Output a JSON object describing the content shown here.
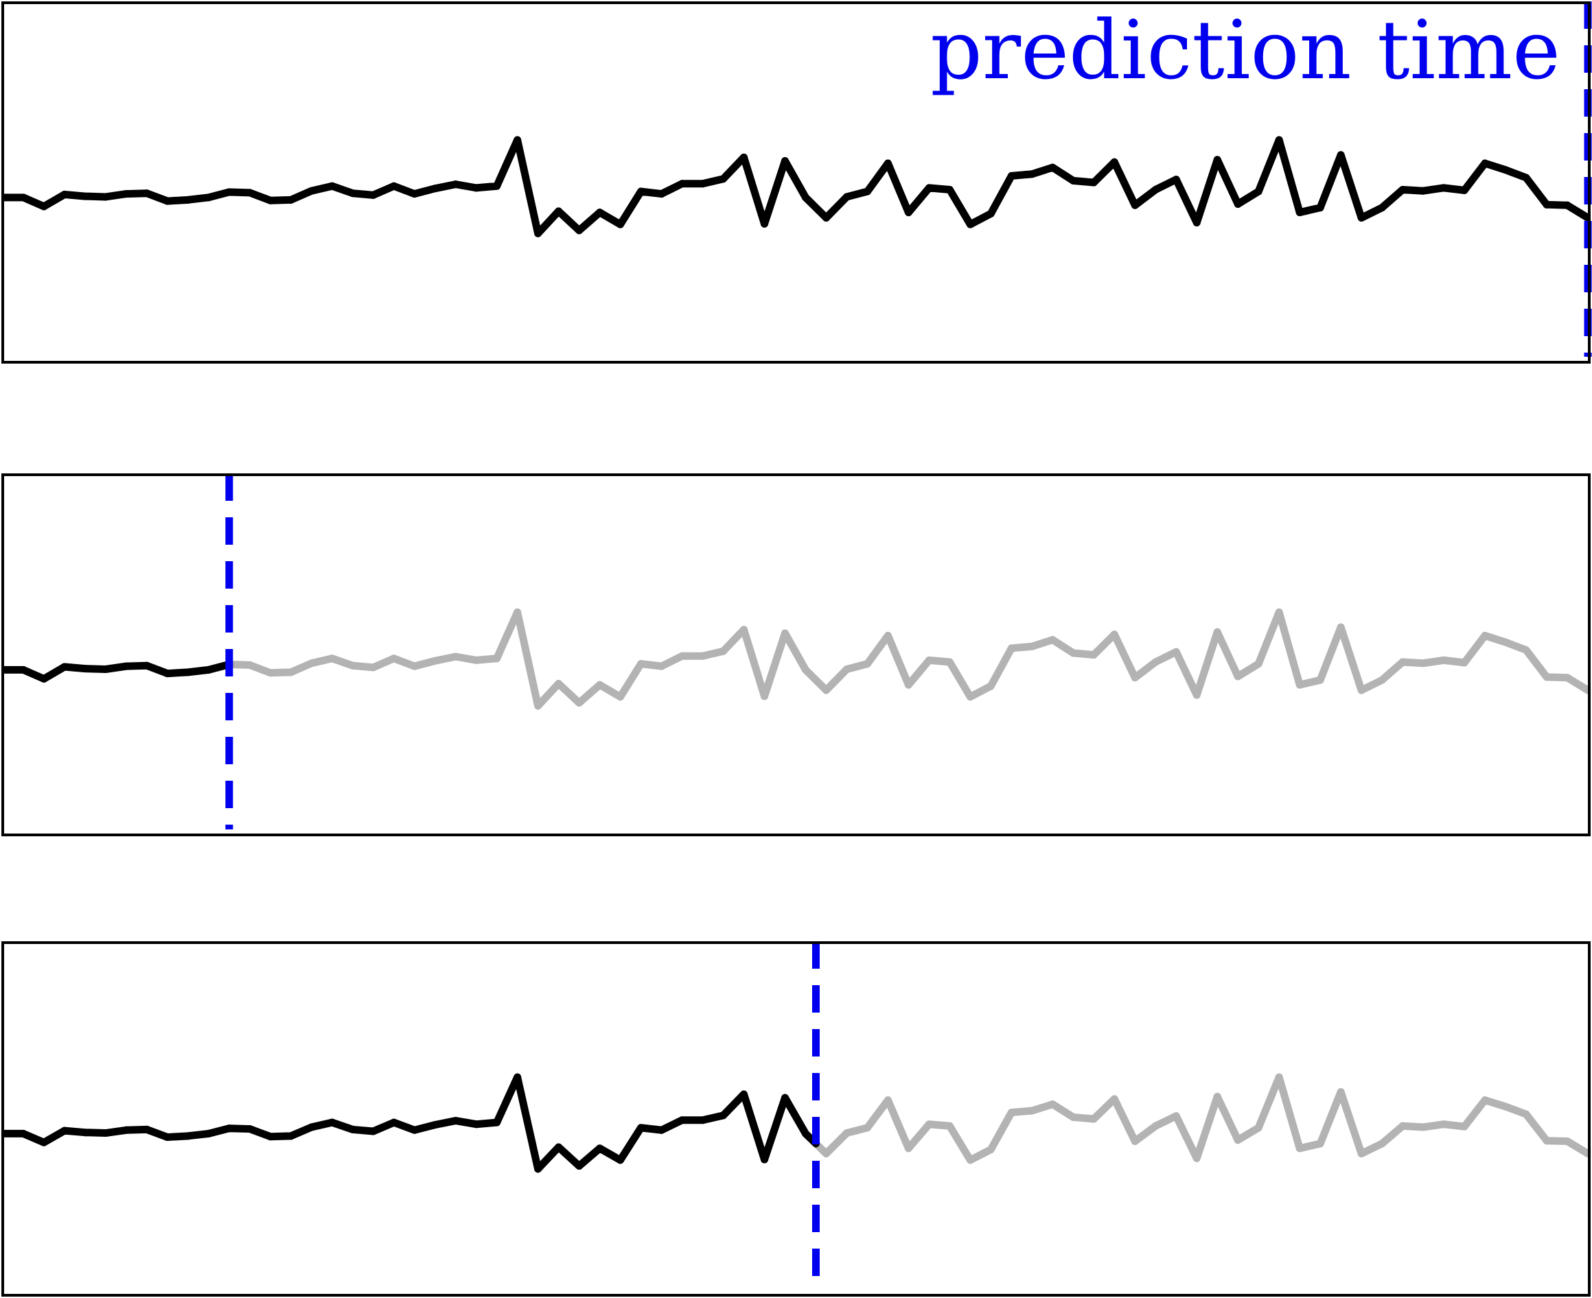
{
  "chart_data": {
    "type": "line",
    "y": [
      1.25,
      1.25,
      1.1,
      1.3,
      1.27,
      1.26,
      1.31,
      1.32,
      1.19,
      1.21,
      1.25,
      1.34,
      1.33,
      1.2,
      1.21,
      1.36,
      1.44,
      1.32,
      1.29,
      1.44,
      1.31,
      1.4,
      1.47,
      1.41,
      1.44,
      2.21,
      0.65,
      1.02,
      0.7,
      1.0,
      0.8,
      1.35,
      1.31,
      1.48,
      1.48,
      1.56,
      1.92,
      0.81,
      1.86,
      1.25,
      0.91,
      1.26,
      1.35,
      1.82,
      1.0,
      1.41,
      1.38,
      0.8,
      0.98,
      1.61,
      1.64,
      1.75,
      1.53,
      1.5,
      1.84,
      1.12,
      1.38,
      1.55,
      0.83,
      1.88,
      1.14,
      1.35,
      2.21,
      1.0,
      1.08,
      1.96,
      0.91,
      1.08,
      1.38,
      1.36,
      1.41,
      1.37,
      1.82,
      1.71,
      1.58,
      1.13,
      1.12,
      0.91
    ],
    "ylim": [
      -1.5,
      4.5
    ],
    "series_colors": {
      "observed": "#000000",
      "unobserved": "#b3b3b3"
    },
    "marker_color": "#0000ee",
    "panels": [
      {
        "cutoff_index": 77,
        "annotation": "prediction time"
      },
      {
        "cutoff_index": 11,
        "annotation": ""
      },
      {
        "cutoff_index": 39.5,
        "annotation": ""
      }
    ]
  }
}
